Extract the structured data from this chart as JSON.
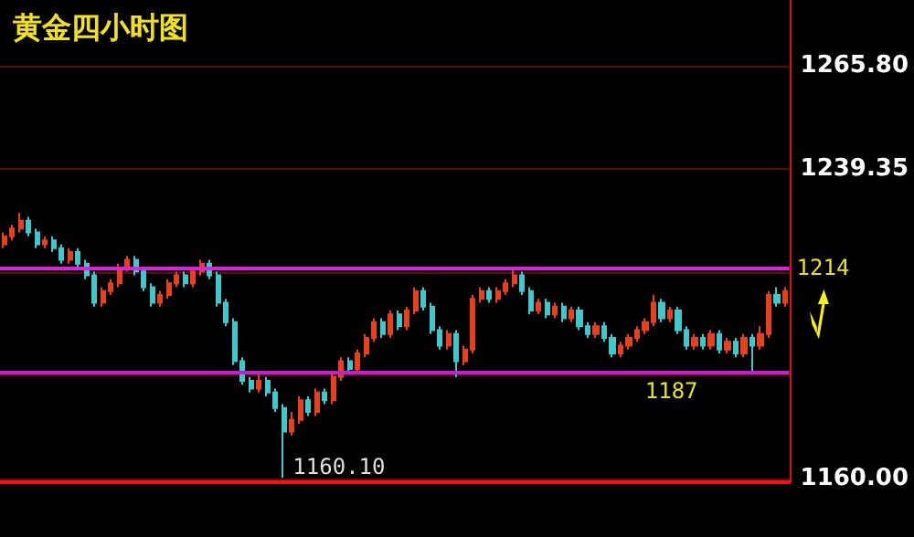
{
  "chart_data": {
    "type": "candlestick",
    "title": "黄金四小时图",
    "categories": [
      null,
      null,
      null,
      null,
      null,
      null,
      null,
      null,
      null,
      null,
      null,
      null,
      null,
      null,
      null,
      null,
      null,
      null,
      null,
      null,
      null,
      null,
      null,
      null,
      null,
      null,
      null,
      null,
      null,
      null,
      null,
      null,
      null,
      null,
      null,
      null,
      null,
      null,
      null,
      null,
      null,
      null,
      null,
      null,
      null,
      null,
      null,
      null,
      null,
      null,
      null,
      null,
      null,
      null,
      null,
      null,
      null,
      null,
      null,
      null,
      null,
      null,
      null,
      null,
      null,
      null,
      null,
      null,
      null,
      null,
      null,
      null,
      null,
      null,
      null,
      null,
      null,
      null,
      null,
      null,
      null,
      null,
      null,
      null,
      null,
      null,
      null,
      null,
      null,
      null,
      null,
      null,
      null,
      null,
      null,
      null
    ],
    "ohlc": [
      [
        1220,
        1223,
        1219,
        1222
      ],
      [
        1222,
        1225,
        1221,
        1224
      ],
      [
        1224,
        1228,
        1223,
        1226
      ],
      [
        1226,
        1227,
        1222,
        1223
      ],
      [
        1223,
        1224,
        1219,
        1220
      ],
      [
        1220,
        1222,
        1219,
        1221
      ],
      [
        1221,
        1222,
        1218,
        1219
      ],
      [
        1219,
        1220,
        1215,
        1216
      ],
      [
        1216,
        1219,
        1215,
        1218
      ],
      [
        1218,
        1219,
        1214,
        1215
      ],
      [
        1215,
        1216,
        1211,
        1212
      ],
      [
        1212,
        1213,
        1204,
        1205
      ],
      [
        1205,
        1209,
        1204,
        1208
      ],
      [
        1208,
        1211,
        1207,
        1210
      ],
      [
        1210,
        1215,
        1209,
        1214
      ],
      [
        1214,
        1217,
        1213,
        1216
      ],
      [
        1216,
        1217,
        1212,
        1213
      ],
      [
        1213,
        1214,
        1208,
        1209
      ],
      [
        1209,
        1210,
        1204,
        1205
      ],
      [
        1205,
        1208,
        1204,
        1207
      ],
      [
        1207,
        1211,
        1206,
        1210
      ],
      [
        1210,
        1213,
        1209,
        1212
      ],
      [
        1212,
        1213,
        1209,
        1210
      ],
      [
        1210,
        1214,
        1209,
        1213
      ],
      [
        1213,
        1216,
        1212,
        1215
      ],
      [
        1215,
        1216,
        1211,
        1212
      ],
      [
        1212,
        1213,
        1204,
        1205
      ],
      [
        1205,
        1206,
        1199,
        1200
      ],
      [
        1200,
        1201,
        1189,
        1190
      ],
      [
        1190,
        1191,
        1184,
        1185
      ],
      [
        1185,
        1186,
        1182,
        1183
      ],
      [
        1183,
        1187,
        1182,
        1185
      ],
      [
        1185,
        1186,
        1181,
        1182
      ],
      [
        1182,
        1183,
        1177,
        1178
      ],
      [
        1178,
        1179,
        1160.1,
        1172
      ],
      [
        1172,
        1177,
        1171,
        1175
      ],
      [
        1175,
        1181,
        1174,
        1180
      ],
      [
        1180,
        1181,
        1176,
        1177
      ],
      [
        1177,
        1183,
        1176,
        1182
      ],
      [
        1182,
        1183,
        1179,
        1180
      ],
      [
        1180,
        1187,
        1179,
        1186
      ],
      [
        1186,
        1191,
        1185,
        1190
      ],
      [
        1190,
        1191,
        1187,
        1188
      ],
      [
        1188,
        1193,
        1187,
        1192
      ],
      [
        1192,
        1197,
        1191,
        1196
      ],
      [
        1196,
        1201,
        1195,
        1200
      ],
      [
        1200,
        1201,
        1196,
        1197
      ],
      [
        1197,
        1203,
        1196,
        1202
      ],
      [
        1202,
        1203,
        1198,
        1199
      ],
      [
        1199,
        1204,
        1198,
        1203
      ],
      [
        1203,
        1209,
        1202,
        1208
      ],
      [
        1208,
        1209,
        1203,
        1204
      ],
      [
        1204,
        1205,
        1197,
        1198
      ],
      [
        1198,
        1199,
        1193,
        1194
      ],
      [
        1194,
        1198,
        1193,
        1197
      ],
      [
        1197,
        1198,
        1186,
        1190
      ],
      [
        1190,
        1194,
        1189,
        1193
      ],
      [
        1193,
        1207,
        1192,
        1206
      ],
      [
        1206,
        1209,
        1205,
        1208
      ],
      [
        1208,
        1209,
        1205,
        1206
      ],
      [
        1206,
        1209,
        1205,
        1208
      ],
      [
        1208,
        1211,
        1207,
        1210
      ],
      [
        1210,
        1213.5,
        1209,
        1212
      ],
      [
        1212,
        1213,
        1207,
        1208
      ],
      [
        1208,
        1209,
        1202,
        1203
      ],
      [
        1203,
        1206,
        1202,
        1205
      ],
      [
        1205,
        1206,
        1201,
        1202
      ],
      [
        1202,
        1205,
        1201,
        1204
      ],
      [
        1204,
        1205,
        1200,
        1201
      ],
      [
        1201,
        1204,
        1200,
        1203
      ],
      [
        1203,
        1204,
        1198,
        1199
      ],
      [
        1199,
        1200,
        1196,
        1197
      ],
      [
        1197,
        1200,
        1196,
        1199
      ],
      [
        1199,
        1200,
        1195,
        1196
      ],
      [
        1196,
        1197,
        1191,
        1192
      ],
      [
        1192,
        1195,
        1191,
        1194
      ],
      [
        1194,
        1197,
        1193,
        1196
      ],
      [
        1196,
        1199,
        1195,
        1198
      ],
      [
        1198,
        1201,
        1197,
        1200
      ],
      [
        1200,
        1207,
        1199,
        1205
      ],
      [
        1205,
        1206,
        1200,
        1201
      ],
      [
        1201,
        1204,
        1200,
        1203
      ],
      [
        1203,
        1204,
        1197,
        1198
      ],
      [
        1198,
        1199,
        1193,
        1194
      ],
      [
        1194,
        1197,
        1193,
        1196
      ],
      [
        1196,
        1197,
        1193,
        1194
      ],
      [
        1194,
        1198,
        1193,
        1197
      ],
      [
        1197,
        1198,
        1192,
        1193
      ],
      [
        1193,
        1196,
        1192,
        1195
      ],
      [
        1195,
        1196,
        1191,
        1192
      ],
      [
        1192,
        1197,
        1191,
        1196
      ],
      [
        1196,
        1197,
        1187,
        1194
      ],
      [
        1194,
        1199,
        1193,
        1197
      ],
      [
        1197,
        1208,
        1196,
        1207
      ],
      [
        1207,
        1209,
        1204,
        1205
      ],
      [
        1205,
        1209,
        1204,
        1208
      ]
    ],
    "colors": [
      "#e8401c",
      "#e8401c",
      "#e8401c",
      "#3ec8cc",
      "#3ec8cc",
      "#e8401c",
      "#3ec8cc",
      "#3ec8cc",
      "#e8401c",
      "#3ec8cc",
      "#3ec8cc",
      "#3ec8cc",
      "#e8401c",
      "#e8401c",
      "#e8401c",
      "#e8401c",
      "#3ec8cc",
      "#3ec8cc",
      "#3ec8cc",
      "#e8401c",
      "#e8401c",
      "#e8401c",
      "#3ec8cc",
      "#e8401c",
      "#e8401c",
      "#3ec8cc",
      "#3ec8cc",
      "#3ec8cc",
      "#3ec8cc",
      "#3ec8cc",
      "#3ec8cc",
      "#e8401c",
      "#3ec8cc",
      "#3ec8cc",
      "#3ec8cc",
      "#e8401c",
      "#e8401c",
      "#3ec8cc",
      "#e8401c",
      "#3ec8cc",
      "#e8401c",
      "#e8401c",
      "#3ec8cc",
      "#e8401c",
      "#e8401c",
      "#e8401c",
      "#3ec8cc",
      "#e8401c",
      "#3ec8cc",
      "#e8401c",
      "#e8401c",
      "#3ec8cc",
      "#3ec8cc",
      "#3ec8cc",
      "#e8401c",
      "#3ec8cc",
      "#e8401c",
      "#e8401c",
      "#e8401c",
      "#3ec8cc",
      "#e8401c",
      "#e8401c",
      "#e8401c",
      "#3ec8cc",
      "#3ec8cc",
      "#e8401c",
      "#3ec8cc",
      "#e8401c",
      "#3ec8cc",
      "#e8401c",
      "#3ec8cc",
      "#3ec8cc",
      "#e8401c",
      "#3ec8cc",
      "#3ec8cc",
      "#e8401c",
      "#e8401c",
      "#e8401c",
      "#e8401c",
      "#e8401c",
      "#3ec8cc",
      "#e8401c",
      "#3ec8cc",
      "#3ec8cc",
      "#e8401c",
      "#3ec8cc",
      "#e8401c",
      "#3ec8cc",
      "#e8401c",
      "#3ec8cc",
      "#e8401c",
      "#3ec8cc",
      "#e8401c",
      "#e8401c",
      "#3ec8cc",
      "#e8401c"
    ],
    "ylim": [
      1159,
      1282.6
    ],
    "yticks": [
      {
        "value": 1160,
        "label": "1160.00"
      },
      {
        "value": 1186.45,
        "label": null
      },
      {
        "value": 1212.9,
        "label": null
      },
      1239.35,
      {
        "value": 1265.8,
        "label": "1265.80"
      }
    ],
    "grid": "y",
    "tick_labels": "y",
    "ref_lines": [
      {
        "axis": "y",
        "value": 1214,
        "label": "1214",
        "color": "#e020e0"
      },
      {
        "axis": "y",
        "value": 1187,
        "label": "1187",
        "color": "#c020d0"
      }
    ],
    "annotations": [
      "1160.10"
    ]
  }
}
